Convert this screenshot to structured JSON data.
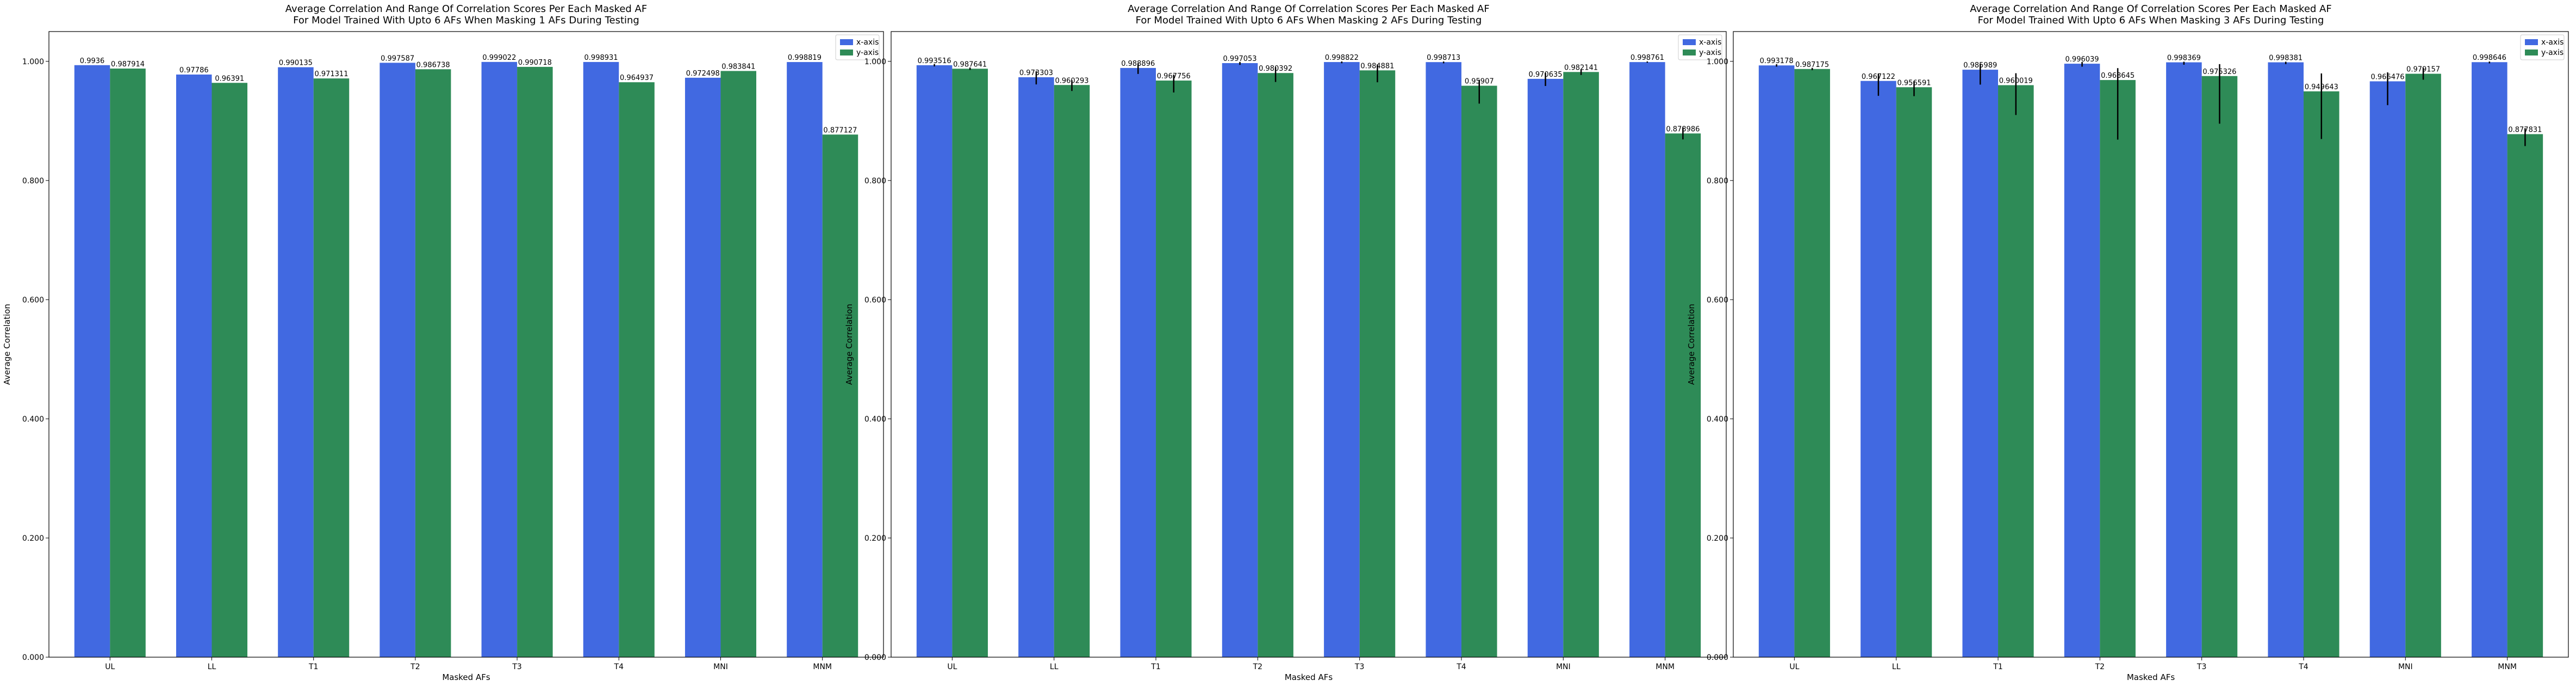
{
  "chart_data": [
    {
      "type": "bar",
      "title": "Average Correlation And Range Of Correlation Scores Per Each Masked AF",
      "subtitle": "For Model Trained With Upto 6 AFs When Masking 1 AFs During Testing",
      "xlabel": "Masked AFs",
      "ylabel": "Average Correlation",
      "ylim": [
        0,
        1.05
      ],
      "yticks": [
        "0.000",
        "0.200",
        "0.400",
        "0.600",
        "0.800",
        "1.000"
      ],
      "ytick_values": [
        0,
        0.2,
        0.4,
        0.6,
        0.8,
        1.0
      ],
      "categories": [
        "UL",
        "LL",
        "T1",
        "T2",
        "T3",
        "T4",
        "MNI",
        "MNM"
      ],
      "legend_position": "top-right",
      "series": [
        {
          "name": "x-axis",
          "color": "#4169e1",
          "values": [
            0.9936,
            0.97786,
            0.990135,
            0.997587,
            0.999022,
            0.998931,
            0.972498,
            0.998819
          ],
          "labels": [
            "0.9936",
            "0.97786",
            "0.990135",
            "0.997587",
            "0.999022",
            "0.998931",
            "0.972498",
            "0.998819"
          ],
          "err_low": [
            0,
            0,
            0,
            0,
            0,
            0,
            0,
            0
          ],
          "err_high": [
            0,
            0,
            0,
            0,
            0,
            0,
            0,
            0
          ]
        },
        {
          "name": "y-axis",
          "color": "#2e8b57",
          "values": [
            0.987914,
            0.96391,
            0.971311,
            0.986738,
            0.990718,
            0.964937,
            0.983841,
            0.877127
          ],
          "labels": [
            "0.987914",
            "0.96391",
            "0.971311",
            "0.986738",
            "0.990718",
            "0.964937",
            "0.983841",
            "0.877127"
          ],
          "err_low": [
            0,
            0,
            0,
            0,
            0,
            0,
            0,
            0
          ],
          "err_high": [
            0,
            0,
            0,
            0,
            0,
            0,
            0,
            0
          ]
        }
      ]
    },
    {
      "type": "bar",
      "title": "Average Correlation And Range Of Correlation Scores Per Each Masked AF",
      "subtitle": "For Model Trained With Upto 6 AFs When Masking 2 AFs During Testing",
      "xlabel": "Masked AFs",
      "ylabel": "Average Correlation",
      "ylim": [
        0,
        1.05
      ],
      "yticks": [
        "0.000",
        "0.200",
        "0.400",
        "0.600",
        "0.800",
        "1.000"
      ],
      "ytick_values": [
        0,
        0.2,
        0.4,
        0.6,
        0.8,
        1.0
      ],
      "categories": [
        "UL",
        "LL",
        "T1",
        "T2",
        "T3",
        "T4",
        "MNI",
        "MNM"
      ],
      "legend_position": "top-right",
      "series": [
        {
          "name": "x-axis",
          "color": "#4169e1",
          "values": [
            0.993516,
            0.973303,
            0.988896,
            0.997053,
            0.998822,
            0.998713,
            0.970635,
            0.998761
          ],
          "labels": [
            "0.993516",
            "0.973303",
            "0.988896",
            "0.997053",
            "0.998822",
            "0.998713",
            "0.970635",
            "0.998761"
          ],
          "err_low": [
            0.002,
            0.012,
            0.01,
            0.003,
            0.002,
            0.002,
            0.012,
            0.001
          ],
          "err_high": [
            0.002,
            0.01,
            0.008,
            0.002,
            0.001,
            0.001,
            0.01,
            0.001
          ]
        },
        {
          "name": "y-axis",
          "color": "#2e8b57",
          "values": [
            0.987641,
            0.960293,
            0.967756,
            0.980392,
            0.984881,
            0.95907,
            0.982141,
            0.878986
          ],
          "labels": [
            "0.987641",
            "0.960293",
            "0.967756",
            "0.980392",
            "0.984881",
            "0.95907",
            "0.982141",
            "0.878986"
          ],
          "err_low": [
            0.002,
            0.01,
            0.02,
            0.015,
            0.02,
            0.03,
            0.005,
            0.01
          ],
          "err_high": [
            0.002,
            0.008,
            0.01,
            0.01,
            0.01,
            0.01,
            0.004,
            0.01
          ]
        }
      ]
    },
    {
      "type": "bar",
      "title": "Average Correlation And Range Of Correlation Scores Per Each Masked AF",
      "subtitle": "For Model Trained With Upto 6 AFs When Masking 3 AFs During Testing",
      "xlabel": "Masked AFs",
      "ylabel": "Average Correlation",
      "ylim": [
        0,
        1.05
      ],
      "yticks": [
        "0.000",
        "0.200",
        "0.400",
        "0.600",
        "0.800",
        "1.000"
      ],
      "ytick_values": [
        0,
        0.2,
        0.4,
        0.6,
        0.8,
        1.0
      ],
      "categories": [
        "UL",
        "LL",
        "T1",
        "T2",
        "T3",
        "T4",
        "MNI",
        "MNM"
      ],
      "legend_position": "top-right",
      "series": [
        {
          "name": "x-axis",
          "color": "#4169e1",
          "values": [
            0.993178,
            0.967122,
            0.985989,
            0.996039,
            0.998369,
            0.998381,
            0.966476,
            0.998646
          ],
          "labels": [
            "0.993178",
            "0.967122",
            "0.985989",
            "0.996039",
            "0.998369",
            "0.998381",
            "0.966476",
            "0.998646"
          ],
          "err_low": [
            0.002,
            0.025,
            0.025,
            0.005,
            0.004,
            0.003,
            0.04,
            0.002
          ],
          "err_high": [
            0.002,
            0.012,
            0.01,
            0.003,
            0.001,
            0.001,
            0.015,
            0.001
          ]
        },
        {
          "name": "y-axis",
          "color": "#2e8b57",
          "values": [
            0.987175,
            0.956591,
            0.960019,
            0.968645,
            0.975326,
            0.949643,
            0.979157,
            0.877831
          ],
          "labels": [
            "0.987175",
            "0.956591",
            "0.960019",
            "0.968645",
            "0.975326",
            "0.949643",
            "0.979157",
            "0.877831"
          ],
          "err_low": [
            0.002,
            0.015,
            0.05,
            0.1,
            0.08,
            0.08,
            0.01,
            0.02
          ],
          "err_high": [
            0.002,
            0.01,
            0.02,
            0.02,
            0.02,
            0.03,
            0.01,
            0.01
          ]
        }
      ]
    }
  ]
}
